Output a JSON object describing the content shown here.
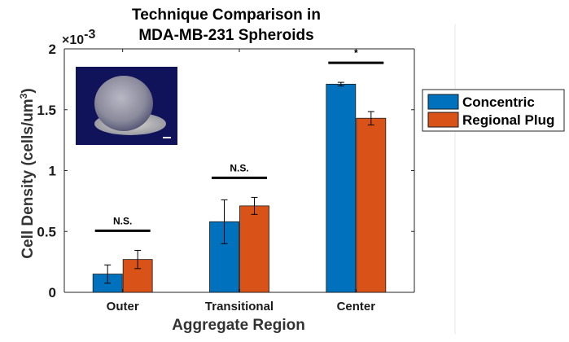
{
  "chart_data": {
    "type": "bar",
    "title": [
      "Technique Comparison in",
      "MDA-MB-231 Spheroids"
    ],
    "xlabel": "Aggregate Region",
    "ylabel": "Cell Density (cells/um",
    "ylabel_superscript": "3",
    "ylabel_close": ")",
    "y_exponent_base": "×10",
    "y_exponent_power": "-3",
    "ylim": [
      0,
      2
    ],
    "yticks": [
      0,
      0.5,
      1,
      1.5,
      2
    ],
    "ytick_labels": [
      "0",
      "0.5",
      "1",
      "1.5",
      "2"
    ],
    "categories": [
      "Outer",
      "Transitional",
      "Center"
    ],
    "series": [
      {
        "name": "Concentric",
        "color": "#0072bd",
        "values": [
          0.15,
          0.58,
          1.71
        ],
        "errors": [
          0.075,
          0.18,
          0.015
        ]
      },
      {
        "name": "Regional Plug",
        "color": "#d95319",
        "values": [
          0.27,
          0.71,
          1.43
        ],
        "errors": [
          0.075,
          0.07,
          0.055
        ]
      }
    ],
    "significance": [
      "N.S.",
      "N.S.",
      "*"
    ],
    "legend_position": "right-outside",
    "grid": false,
    "inset_image": "spheroid-micrograph"
  }
}
